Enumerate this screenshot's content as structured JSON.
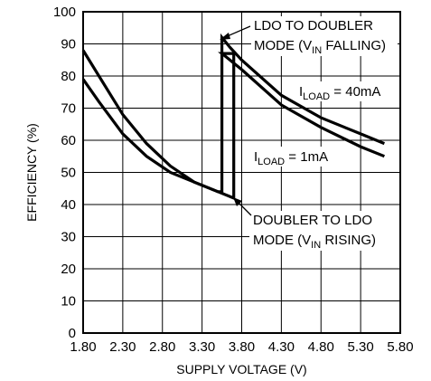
{
  "chart_data": {
    "type": "line",
    "title": "",
    "xlabel": "SUPPLY VOLTAGE (V)",
    "ylabel": "EFFICIENCY (%)",
    "xlim": [
      1.8,
      5.8
    ],
    "ylim": [
      0,
      100
    ],
    "x_ticks": [
      "1.80",
      "2.30",
      "2.80",
      "3.30",
      "3.80",
      "4.30",
      "4.80",
      "5.30",
      "5.80"
    ],
    "y_ticks": [
      "0",
      "10",
      "20",
      "30",
      "40",
      "50",
      "60",
      "70",
      "80",
      "90",
      "100"
    ],
    "grid": true,
    "series": [
      {
        "name": "I_LOAD = 40mA",
        "x": [
          1.8,
          2.0,
          2.3,
          2.6,
          2.9,
          3.2,
          3.5,
          3.55,
          3.55,
          3.65,
          3.8,
          4.3,
          4.8,
          5.3,
          5.6
        ],
        "y": [
          88,
          80,
          68,
          59,
          52,
          47,
          44,
          44,
          92,
          89,
          85,
          74,
          67,
          62,
          59
        ]
      },
      {
        "name": "I_LOAD = 1mA",
        "x": [
          1.8,
          2.0,
          2.3,
          2.6,
          2.9,
          3.2,
          3.5,
          3.7,
          3.7,
          3.55,
          3.55,
          3.8,
          4.3,
          4.8,
          5.3,
          5.6
        ],
        "y": [
          79,
          72,
          62,
          55,
          50,
          47,
          44,
          42,
          87,
          87,
          87,
          82,
          71,
          64,
          58,
          55
        ]
      }
    ],
    "annotations": [
      {
        "lines": [
          "LDO TO DOUBLER",
          "MODE (V",
          "IN",
          " FALLING)"
        ]
      },
      {
        "lines": [
          "DOUBLER TO LDO",
          "MODE (V",
          "IN",
          " RISING)"
        ]
      }
    ],
    "series_labels": [
      {
        "prefix": "I",
        "sub": "LOAD",
        "suffix": " = 40mA"
      },
      {
        "prefix": "I",
        "sub": "LOAD",
        "suffix": " = 1mA"
      }
    ]
  }
}
